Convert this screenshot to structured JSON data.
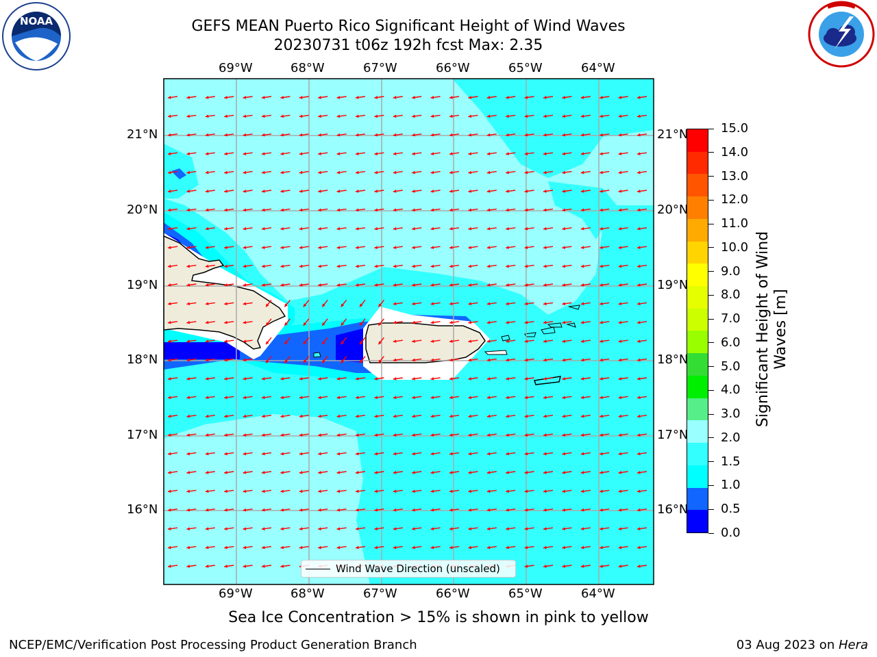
{
  "header": {
    "title_line1": "GEFS MEAN Puerto Rico Significant Height of Wind Waves",
    "title_line2": "20230731 t06z 192h fcst   Max: 2.35"
  },
  "logos": {
    "left": {
      "icon": "noaa-logo",
      "text": "NOAA"
    },
    "right": {
      "icon": "national-weather-service-logo",
      "text": "NATIONAL WEATHER SERVICE"
    }
  },
  "map": {
    "lon_labels": [
      "69°W",
      "68°W",
      "67°W",
      "66°W",
      "65°W",
      "64°W"
    ],
    "lat_labels": [
      "21°N",
      "20°N",
      "19°N",
      "18°N",
      "17°N",
      "16°N"
    ],
    "legend_label": "Wind Wave Direction (unscaled)",
    "arrow_color": "#ff0000",
    "land_color": "#efecdc",
    "ocean_base_color": "#33ffff"
  },
  "colorbar": {
    "label": "Significant Height of Wind Waves [m]",
    "label_line1": "Significant Height of Wind",
    "label_line2": "Waves [m]",
    "ticks": [
      "15.0",
      "14.0",
      "13.0",
      "12.0",
      "11.0",
      "10.0",
      "9.0",
      "8.0",
      "7.0",
      "6.0",
      "5.0",
      "4.0",
      "3.0",
      "2.0",
      "1.5",
      "1.0",
      "0.5",
      "0.0"
    ],
    "colors_top_to_bottom": [
      "#ff0000",
      "#ff2a00",
      "#ff5500",
      "#ff8000",
      "#ffaa00",
      "#ffd400",
      "#ffff00",
      "#e6ff00",
      "#ccff00",
      "#99ff00",
      "#33dd33",
      "#00ee00",
      "#55ee88",
      "#99ffff",
      "#33ffff",
      "#00ffff",
      "#1166ff",
      "#0000ff"
    ]
  },
  "notes": {
    "sea_ice": "Sea Ice Concentration > 15% is shown in pink to yellow"
  },
  "footer": {
    "left": "NCEP/EMC/Verification Post Processing Product Generation Branch",
    "right_prefix": "03 Aug 2023 on ",
    "right_host": "Hera"
  }
}
